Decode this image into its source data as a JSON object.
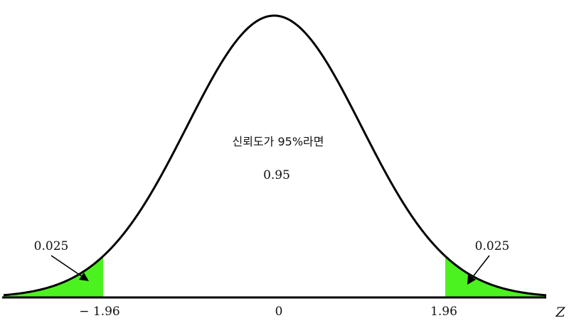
{
  "chart_data": {
    "type": "area",
    "distribution": "standard-normal",
    "x_variable": "Z",
    "xlim": [
      -4,
      4
    ],
    "ticks": [
      {
        "value": -1.96,
        "label": "− 1.96"
      },
      {
        "value": 0,
        "label": "0"
      },
      {
        "value": 1.96,
        "label": "1.96"
      }
    ],
    "shaded_regions": [
      {
        "from": -4,
        "to": -1.96,
        "area_label": "0.025",
        "color": "#4cf21f"
      },
      {
        "from": 1.96,
        "to": 4,
        "area_label": "0.025",
        "color": "#4cf21f"
      }
    ],
    "center_region": {
      "from": -1.96,
      "to": 1.96,
      "area_label": "0.95"
    },
    "annotation": "신뢰도가 95%라면",
    "axis_label": "Z",
    "curve_color": "#000000"
  }
}
